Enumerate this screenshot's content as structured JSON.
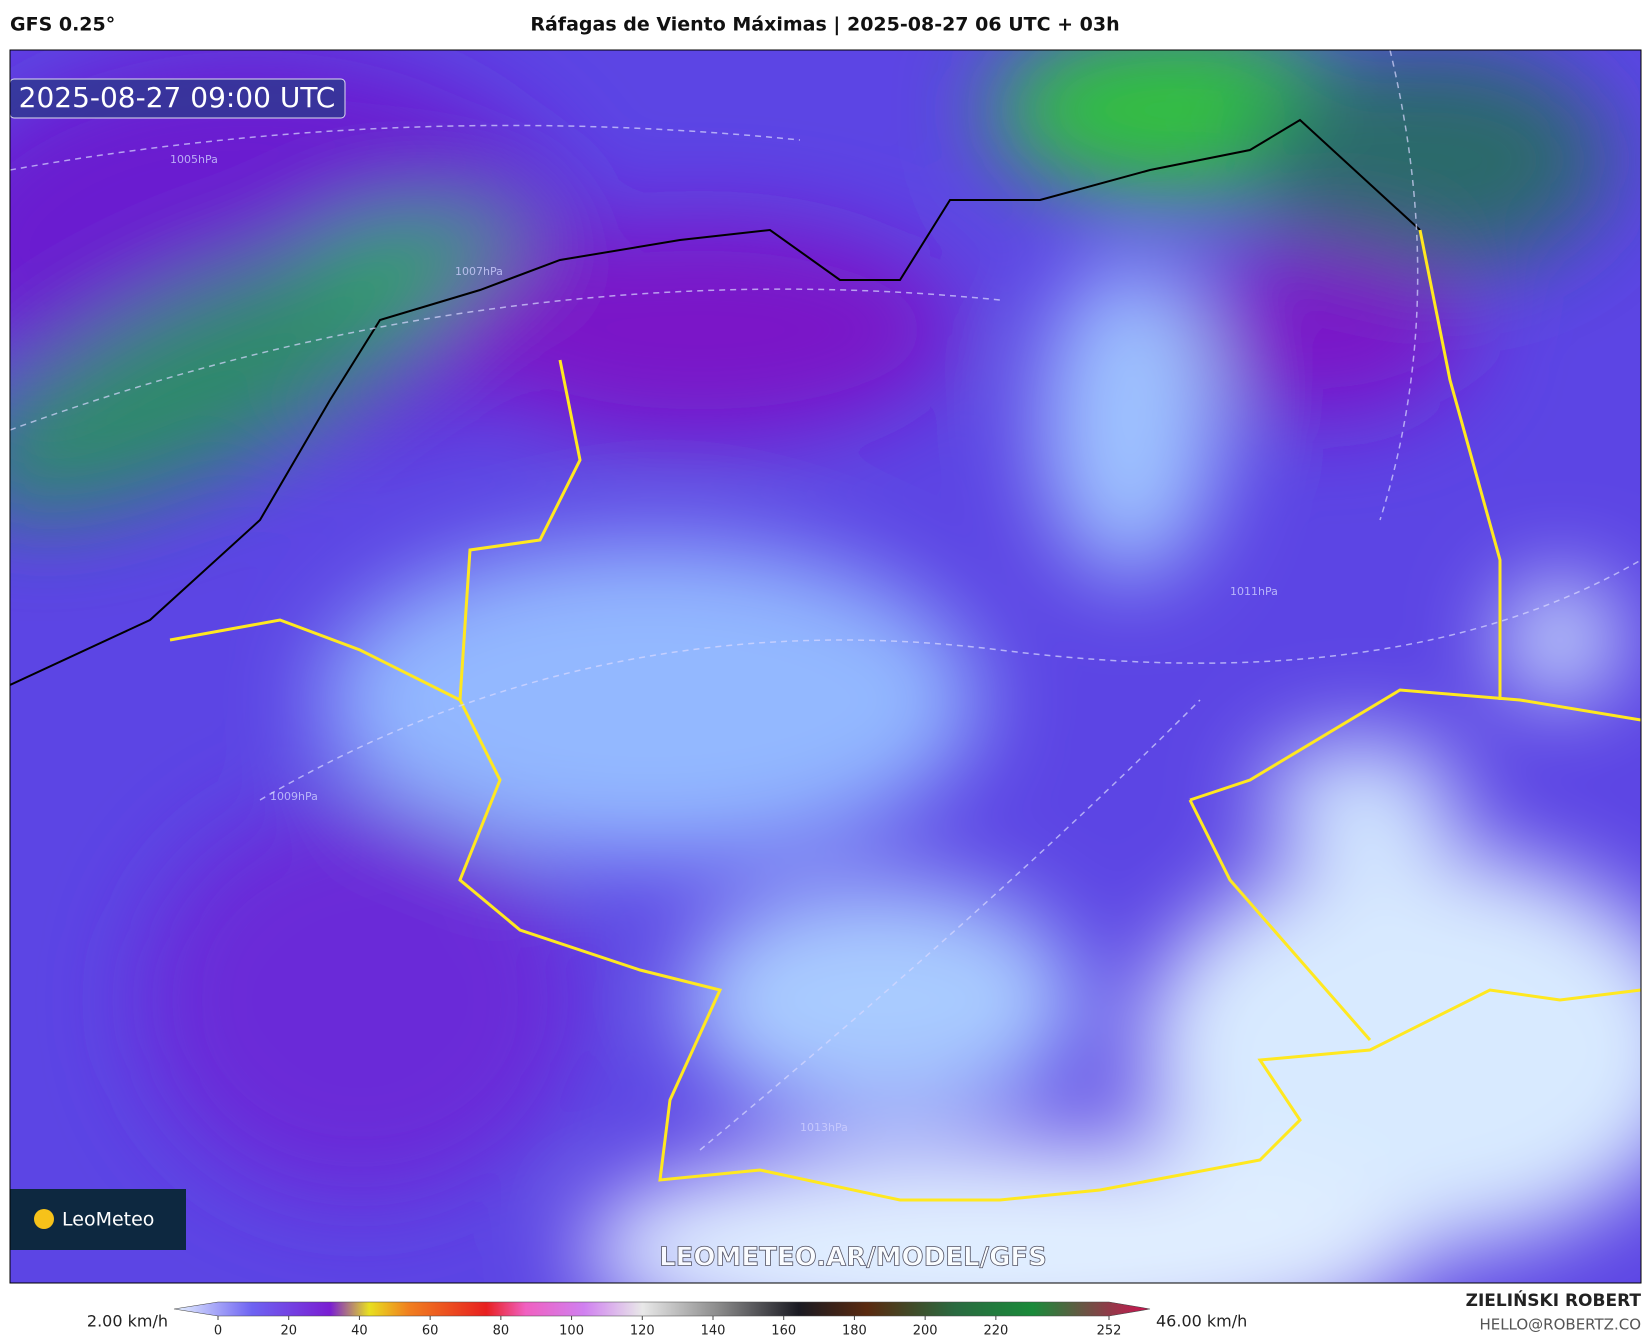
{
  "header": {
    "model": "GFS 0.25°",
    "title": "Ráfagas de Viento Máximas | 2025-08-27 06 UTC + 03h"
  },
  "map": {
    "timestamp": "2025-08-27 09:00 UTC",
    "watermark": "LEOMETEO.AR/MODEL/GFS",
    "logo": "LeoMeteo",
    "isobars": [
      "1005hPa",
      "1007hPa",
      "1009hPa",
      "1011hPa",
      "1013hPa"
    ]
  },
  "colorbar": {
    "min_label": "2.00 km/h",
    "max_label": "46.00 km/h",
    "range": [
      0,
      252
    ],
    "ticks": [
      0,
      20,
      40,
      60,
      80,
      100,
      120,
      140,
      160,
      180,
      200,
      220,
      252
    ]
  },
  "credits": {
    "author": "ZIELIŃSKI ROBERT",
    "contact": "HELLO@ROBERTZ.CO"
  }
}
